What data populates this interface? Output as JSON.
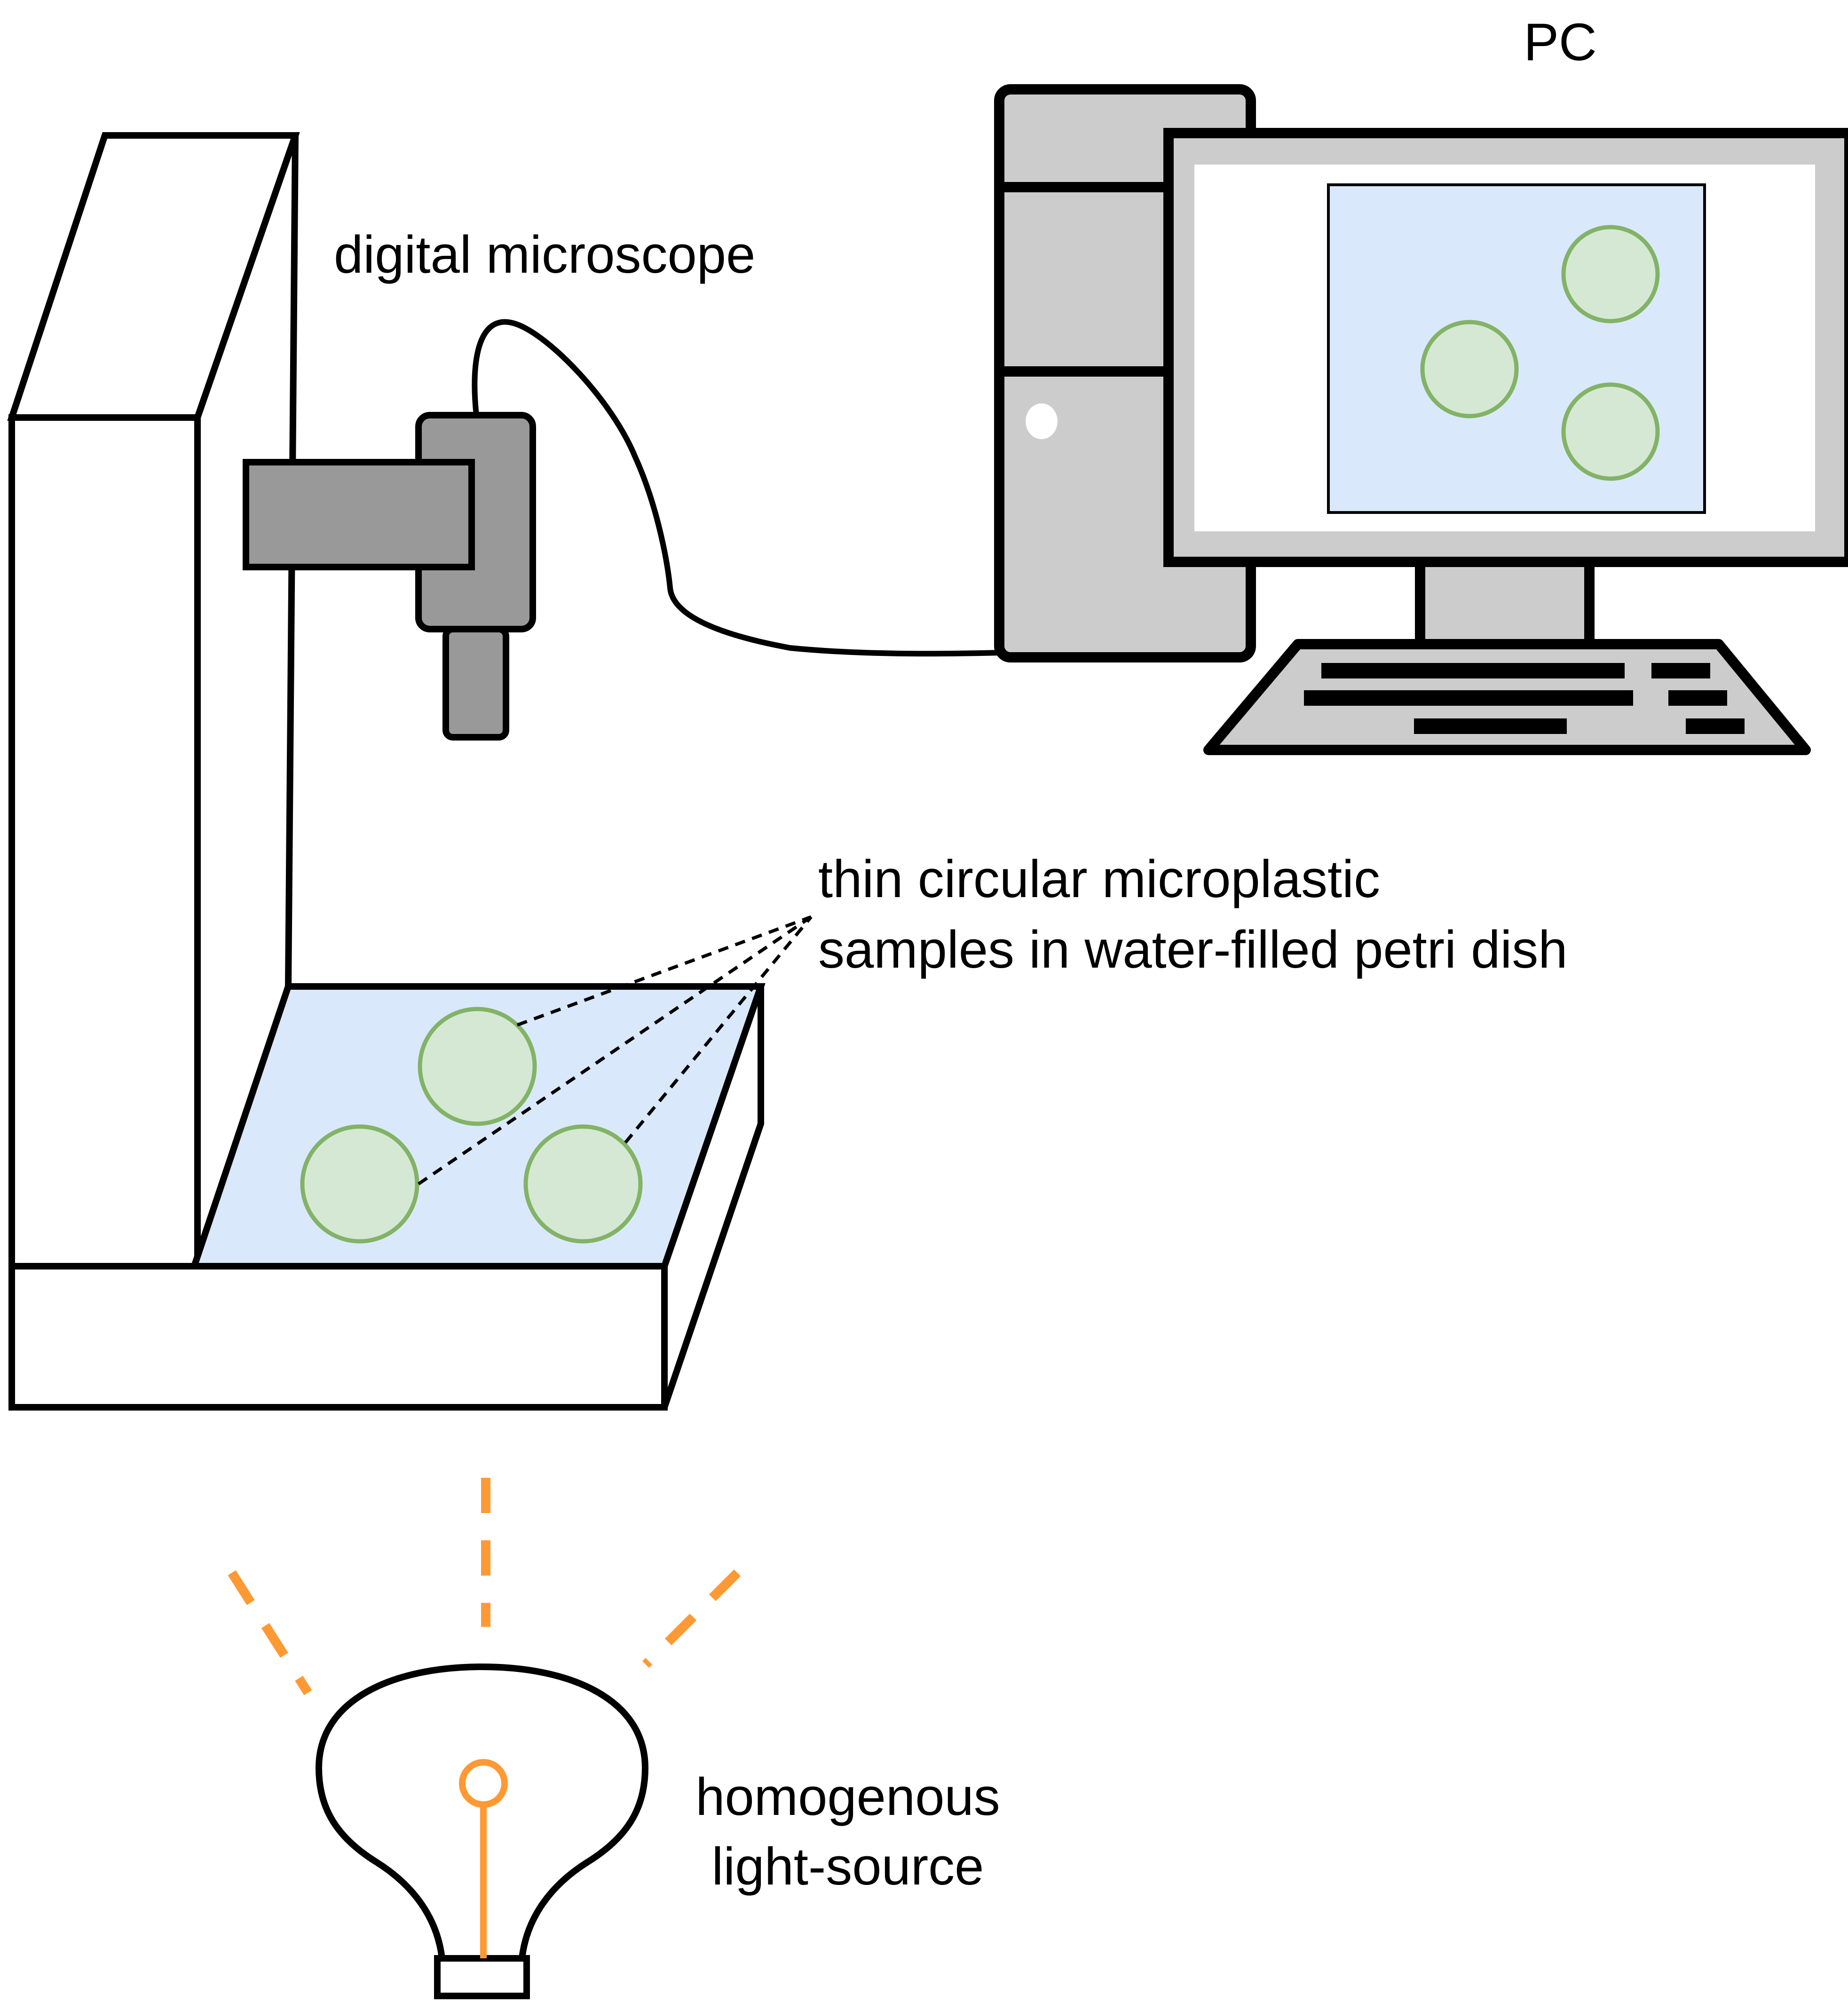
{
  "labels": {
    "pc": "PC",
    "digital_microscope": "digital microscope",
    "samples_line1": "thin circular microplastic",
    "samples_line2": "samples in water-filled petri dish",
    "light_line1": "homogenous",
    "light_line2": "light-source"
  },
  "colors": {
    "outline": "#000000",
    "stand_fill": "#ffffff",
    "microscope_gray": "#999999",
    "computer_gray": "#cccccc",
    "water_blue": "#dae8fc",
    "sample_green_fill": "#d5e8d4",
    "sample_green_stroke": "#82b366",
    "light_orange": "#ff9933"
  },
  "icons": {
    "stand": "microscope-stand",
    "microscope": "digital-microscope-icon",
    "computer": "desktop-computer-icon",
    "bulb": "light-bulb-icon"
  }
}
